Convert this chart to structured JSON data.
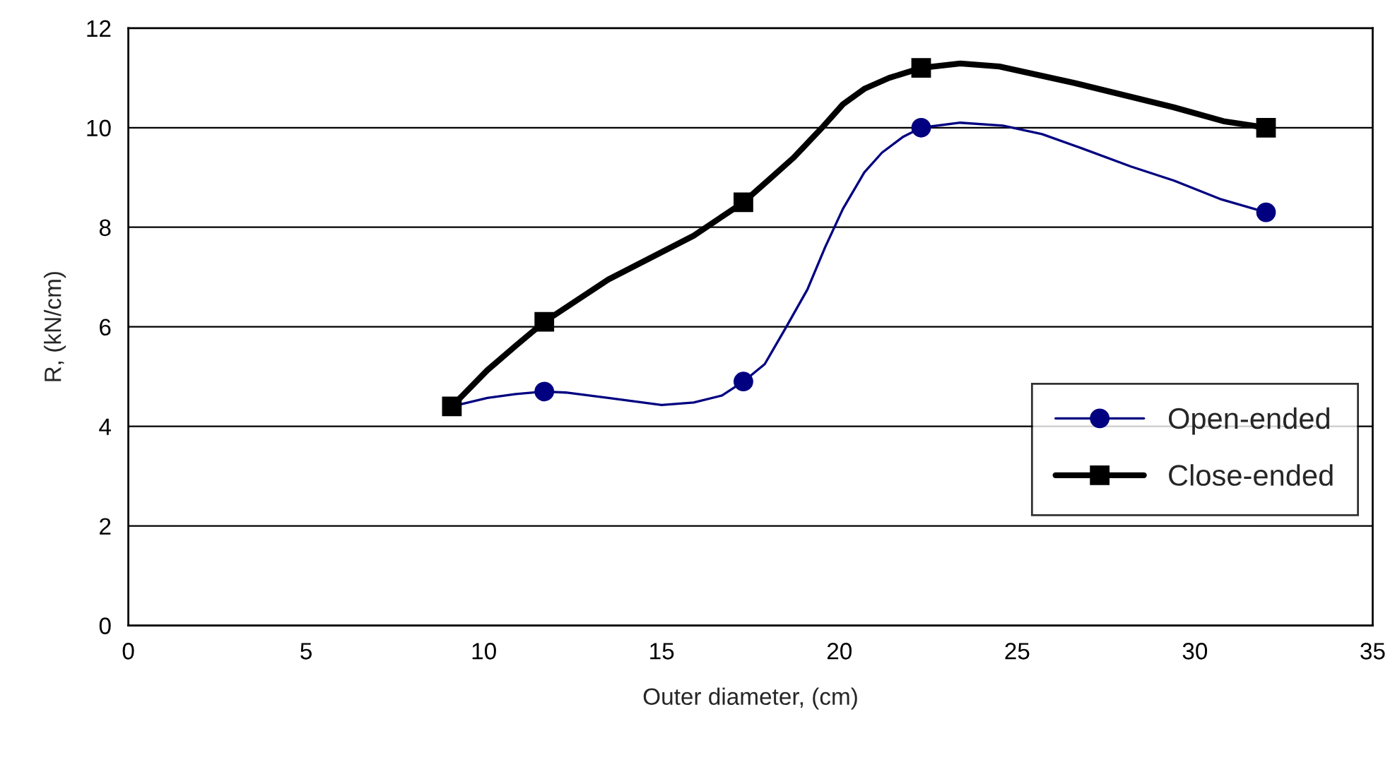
{
  "chart_data": {
    "type": "line",
    "xlabel": "Outer diameter, (cm)",
    "ylabel": "R, (kN/cm)",
    "xlim": [
      0,
      35
    ],
    "xticks": [
      0,
      5,
      10,
      15,
      20,
      25,
      30,
      35
    ],
    "ylim": [
      0,
      12
    ],
    "yticks": [
      0,
      2,
      4,
      6,
      8,
      10,
      12
    ],
    "grid": "y",
    "legend": "bottom right",
    "line_style": "solid",
    "series": [
      {
        "name": "Open-ended",
        "color": "#000080",
        "marker": "none",
        "x": [
          9.1,
          10.1,
          10.9,
          11.7,
          12.3,
          13.5,
          15.0,
          15.9,
          16.7,
          17.3,
          17.9,
          18.5,
          19.1,
          19.6,
          20.1,
          20.7,
          21.2,
          21.8,
          22.3,
          23.4,
          24.6,
          25.7,
          26.8,
          28.2,
          29.4,
          30.7,
          32
        ],
        "values": [
          4.4,
          4.57,
          4.65,
          4.7,
          4.68,
          4.57,
          4.43,
          4.48,
          4.62,
          4.9,
          5.25,
          5.99,
          6.75,
          7.6,
          8.37,
          9.1,
          9.5,
          9.82,
          10.0,
          10.1,
          10.04,
          9.87,
          9.59,
          9.22,
          8.94,
          8.57,
          8.3
        ]
      },
      {
        "name": "Close-ended",
        "color": "#000000",
        "marker": "none",
        "x": [
          9.1,
          10.1,
          10.9,
          11.7,
          13.5,
          15.9,
          17.3,
          17.9,
          18.7,
          19.5,
          20.1,
          20.7,
          21.4,
          22.3,
          23.4,
          24.5,
          26.6,
          29.4,
          30.8,
          32
        ],
        "values": [
          4.4,
          5.13,
          5.62,
          6.1,
          6.95,
          7.83,
          8.5,
          8.88,
          9.39,
          9.99,
          10.47,
          10.78,
          11.0,
          11.2,
          11.29,
          11.23,
          10.9,
          10.41,
          10.13,
          10.0
        ]
      },
      {
        "type": "scatter",
        "color": "#000080",
        "marker": "circle",
        "x": [
          11.7,
          17.3,
          22.3,
          32
        ],
        "values": [
          4.7,
          4.9,
          10.0,
          8.3
        ]
      },
      {
        "type": "scatter",
        "color": "#000000",
        "marker": "square",
        "x": [
          9.1,
          11.7,
          17.3,
          22.3,
          32
        ],
        "values": [
          4.4,
          6.1,
          8.5,
          11.2,
          10.0
        ]
      }
    ]
  }
}
